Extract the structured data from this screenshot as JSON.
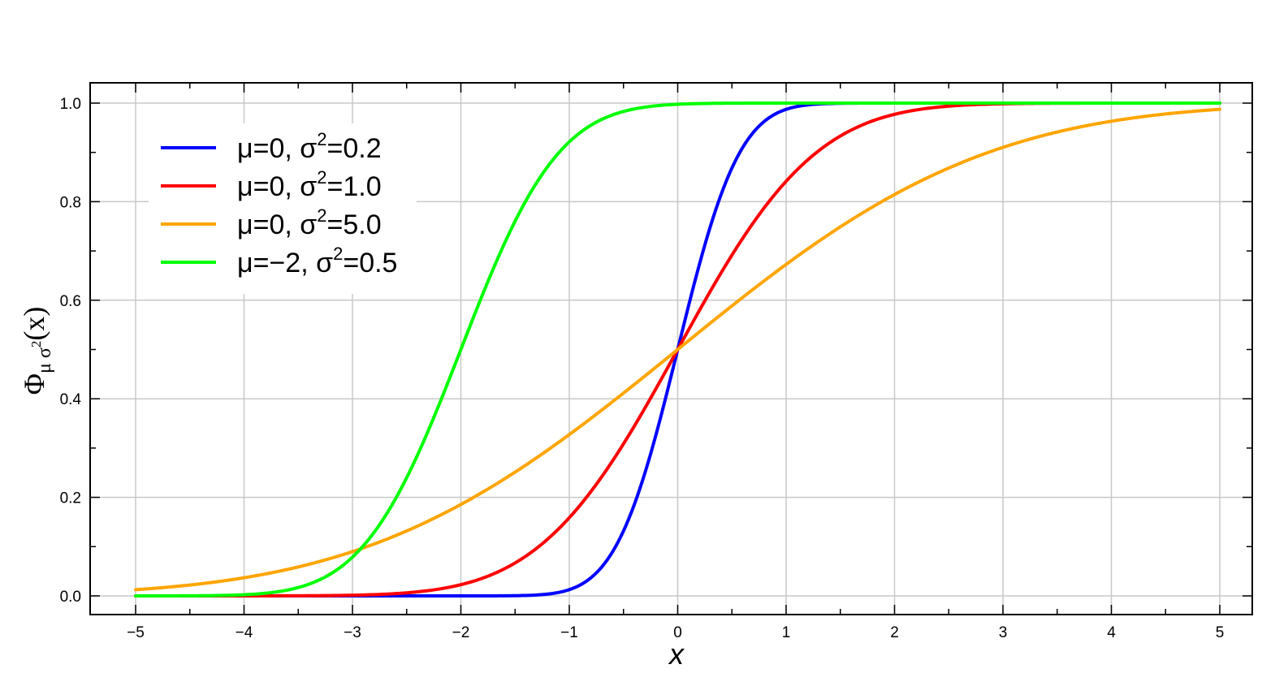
{
  "chart_data": {
    "type": "line",
    "xlabel": "x",
    "ylabel": {
      "base": "Φ",
      "sub_mu": "μ",
      "sub_sigma": "σ",
      "sub_sup": "2",
      "arg": "(x)"
    },
    "xlim": [
      -5,
      5
    ],
    "ylim": [
      0.0,
      1.0
    ],
    "x_ticks": [
      -5,
      -4,
      -3,
      -2,
      -1,
      0,
      1,
      2,
      3,
      4,
      5
    ],
    "x_tick_labels": [
      "−5",
      "−4",
      "−3",
      "−2",
      "−1",
      "0",
      "1",
      "2",
      "3",
      "4",
      "5"
    ],
    "y_ticks": [
      0.0,
      0.2,
      0.4,
      0.6,
      0.8,
      1.0
    ],
    "y_tick_labels": [
      "0.0",
      "0.2",
      "0.4",
      "0.6",
      "0.8",
      "1.0"
    ],
    "grid": true,
    "legend_position": "top-left",
    "series": [
      {
        "mu": 0,
        "variance": 0.2,
        "color": "#0000ff",
        "label": {
          "pre": "μ=0, σ",
          "sup": "2",
          "post": "=0.2"
        }
      },
      {
        "mu": 0,
        "variance": 1.0,
        "color": "#ff0000",
        "label": {
          "pre": "μ=0, σ",
          "sup": "2",
          "post": "=1.0"
        }
      },
      {
        "mu": 0,
        "variance": 5.0,
        "color": "#ffa500",
        "label": {
          "pre": "μ=0, σ",
          "sup": "2",
          "post": "=5.0"
        }
      },
      {
        "mu": -2,
        "variance": 0.5,
        "color": "#00ff00",
        "label": {
          "pre": "μ=−2, σ",
          "sup": "2",
          "post": "=0.5"
        }
      }
    ]
  }
}
